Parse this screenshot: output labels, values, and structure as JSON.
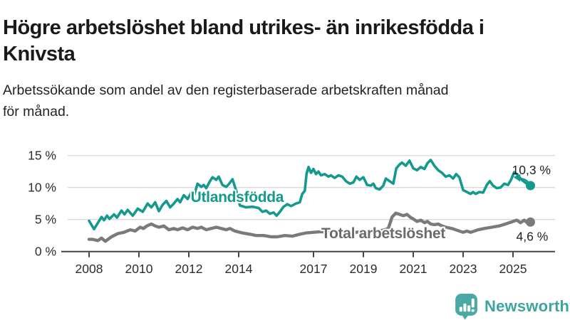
{
  "header": {
    "title_lines": [
      "Högre arbetslöshet bland utrikes- än inrikesfödda i",
      "Knivsta"
    ],
    "subtitle_lines": [
      "Arbetssökande som andel av den registerbaserade arbetskraften månad",
      "för månad."
    ]
  },
  "footer": {
    "brand": "Newsworthy",
    "logo_icon": "bar-chart-speech-bubble",
    "logo_color": "#4aa9a4"
  },
  "chart_data": {
    "type": "line",
    "title": "Högre arbetslöshet bland utrikes- än inrikesfödda i Knivsta",
    "subtitle": "Arbetssökande som andel av den registerbaserade arbetskraften månad för månad.",
    "unit": "%",
    "xlim": [
      2007.75,
      2026.35
    ],
    "ylim": [
      0,
      15.8
    ],
    "grid": true,
    "x_ticks": [
      2008,
      2010,
      2012,
      2014,
      2017,
      2019,
      2021,
      2023,
      2025
    ],
    "y_ticks": [
      {
        "value": 0,
        "label": "0 %"
      },
      {
        "value": 5,
        "label": "5 %"
      },
      {
        "value": 10,
        "label": "10 %"
      },
      {
        "value": 15,
        "label": "15 %"
      }
    ],
    "colors": {
      "grid": "#d9d9d9",
      "axis": "#444444",
      "tick_text": "#2d2d2d",
      "annotation": "#1f1f1f",
      "teal": "#14998d",
      "gray": "#7a7a7a"
    },
    "series": [
      {
        "id": "utlandsfodda",
        "name": "Utlandsfödda",
        "color": "#14998d",
        "label_color": "#14998d",
        "width": 3.6,
        "end_value": 10.3,
        "end_label": "10,3 %",
        "label_pos": [
          2013.94,
          7.74
        ],
        "end_label_offset": [
          -26,
          -16
        ],
        "arrow": true,
        "points": [
          [
            2008.0,
            4.8
          ],
          [
            2008.2,
            3.5
          ],
          [
            2008.5,
            5.4
          ],
          [
            2008.6,
            4.9
          ],
          [
            2008.72,
            5.6
          ],
          [
            2008.82,
            5.1
          ],
          [
            2009.0,
            5.8
          ],
          [
            2009.12,
            5.3
          ],
          [
            2009.3,
            6.4
          ],
          [
            2009.42,
            5.8
          ],
          [
            2009.55,
            6.5
          ],
          [
            2009.75,
            5.6
          ],
          [
            2009.95,
            6.7
          ],
          [
            2010.15,
            6.2
          ],
          [
            2010.35,
            7.5
          ],
          [
            2010.5,
            6.9
          ],
          [
            2010.65,
            7.7
          ],
          [
            2010.8,
            6.3
          ],
          [
            2010.95,
            7.3
          ],
          [
            2011.1,
            7.9
          ],
          [
            2011.25,
            6.9
          ],
          [
            2011.4,
            7.5
          ],
          [
            2011.55,
            8.2
          ],
          [
            2011.65,
            7.7
          ],
          [
            2011.8,
            8.8
          ],
          [
            2011.95,
            8.2
          ],
          [
            2012.1,
            9.2
          ],
          [
            2012.2,
            8.6
          ],
          [
            2012.35,
            10.6
          ],
          [
            2012.5,
            10.1
          ],
          [
            2012.6,
            10.4
          ],
          [
            2012.7,
            9.9
          ],
          [
            2012.85,
            11.0
          ],
          [
            2012.95,
            11.6
          ],
          [
            2013.1,
            11.2
          ],
          [
            2013.2,
            11.7
          ],
          [
            2013.35,
            10.4
          ],
          [
            2013.5,
            10.1
          ],
          [
            2013.62,
            10.6
          ],
          [
            2013.75,
            11.3
          ],
          [
            2013.9,
            9.5
          ],
          [
            2014.05,
            7.2
          ],
          [
            2014.3,
            6.9
          ],
          [
            2014.55,
            7.0
          ],
          [
            2014.8,
            6.8
          ],
          [
            2014.95,
            6.2
          ],
          [
            2015.1,
            6.4
          ],
          [
            2015.25,
            5.9
          ],
          [
            2015.4,
            6.1
          ],
          [
            2015.52,
            5.6
          ],
          [
            2015.65,
            6.2
          ],
          [
            2015.8,
            7.0
          ],
          [
            2015.95,
            7.4
          ],
          [
            2016.1,
            7.1
          ],
          [
            2016.3,
            7.5
          ],
          [
            2016.45,
            7.7
          ],
          [
            2016.55,
            9.0
          ],
          [
            2016.65,
            9.5
          ],
          [
            2016.72,
            12.1
          ],
          [
            2016.8,
            13.2
          ],
          [
            2016.9,
            12.3
          ],
          [
            2017.0,
            12.9
          ],
          [
            2017.1,
            12.1
          ],
          [
            2017.2,
            12.5
          ],
          [
            2017.3,
            11.9
          ],
          [
            2017.45,
            12.1
          ],
          [
            2017.6,
            11.7
          ],
          [
            2017.7,
            11.9
          ],
          [
            2017.85,
            11.5
          ],
          [
            2018.0,
            11.9
          ],
          [
            2018.15,
            11.7
          ],
          [
            2018.3,
            11.0
          ],
          [
            2018.45,
            10.6
          ],
          [
            2018.6,
            10.8
          ],
          [
            2018.72,
            11.7
          ],
          [
            2018.85,
            11.2
          ],
          [
            2019.0,
            11.6
          ],
          [
            2019.15,
            10.4
          ],
          [
            2019.3,
            10.3
          ],
          [
            2019.4,
            10.6
          ],
          [
            2019.5,
            9.9
          ],
          [
            2019.65,
            9.7
          ],
          [
            2019.8,
            10.3
          ],
          [
            2019.9,
            11.4
          ],
          [
            2020.05,
            11.0
          ],
          [
            2020.2,
            10.6
          ],
          [
            2020.32,
            13.0
          ],
          [
            2020.45,
            13.6
          ],
          [
            2020.55,
            13.9
          ],
          [
            2020.7,
            13.4
          ],
          [
            2020.85,
            14.2
          ],
          [
            2021.0,
            13.0
          ],
          [
            2021.15,
            12.7
          ],
          [
            2021.3,
            13.2
          ],
          [
            2021.45,
            12.9
          ],
          [
            2021.57,
            13.8
          ],
          [
            2021.7,
            14.3
          ],
          [
            2021.85,
            13.4
          ],
          [
            2022.0,
            12.7
          ],
          [
            2022.15,
            12.3
          ],
          [
            2022.3,
            11.7
          ],
          [
            2022.45,
            11.9
          ],
          [
            2022.6,
            11.4
          ],
          [
            2022.72,
            12.1
          ],
          [
            2022.85,
            11.6
          ],
          [
            2023.0,
            9.6
          ],
          [
            2023.15,
            9.3
          ],
          [
            2023.3,
            9.0
          ],
          [
            2023.4,
            9.3
          ],
          [
            2023.5,
            9.0
          ],
          [
            2023.65,
            9.3
          ],
          [
            2023.8,
            9.2
          ],
          [
            2023.95,
            10.4
          ],
          [
            2024.07,
            11.0
          ],
          [
            2024.2,
            10.3
          ],
          [
            2024.35,
            9.9
          ],
          [
            2024.5,
            10.0
          ],
          [
            2024.65,
            10.6
          ],
          [
            2024.8,
            10.4
          ],
          [
            2024.92,
            11.2
          ],
          [
            2025.05,
            12.4
          ],
          [
            2025.2,
            11.9
          ],
          [
            2025.35,
            11.2
          ],
          [
            2025.55,
            10.6
          ],
          [
            2025.7,
            10.3
          ]
        ]
      },
      {
        "id": "total-arbetsloshet",
        "name": "Total arbetslöshet",
        "color": "#7a7a7a",
        "label_color": "#6b6b6b",
        "width": 4.4,
        "end_value": 4.6,
        "end_label": "4,6 %",
        "label_pos": [
          2019.8,
          2.1
        ],
        "end_label_offset": [
          -20,
          26
        ],
        "arrow": false,
        "points": [
          [
            2008.0,
            1.9
          ],
          [
            2008.15,
            1.9
          ],
          [
            2008.35,
            1.7
          ],
          [
            2008.5,
            2.1
          ],
          [
            2008.65,
            1.6
          ],
          [
            2008.9,
            2.3
          ],
          [
            2009.15,
            2.8
          ],
          [
            2009.4,
            3.0
          ],
          [
            2009.65,
            3.4
          ],
          [
            2009.85,
            3.2
          ],
          [
            2010.05,
            3.8
          ],
          [
            2010.18,
            3.6
          ],
          [
            2010.32,
            4.0
          ],
          [
            2010.5,
            4.3
          ],
          [
            2010.65,
            4.0
          ],
          [
            2010.8,
            3.8
          ],
          [
            2011.0,
            4.0
          ],
          [
            2011.2,
            3.4
          ],
          [
            2011.4,
            3.6
          ],
          [
            2011.55,
            3.4
          ],
          [
            2011.75,
            3.7
          ],
          [
            2011.95,
            3.4
          ],
          [
            2012.15,
            3.8
          ],
          [
            2012.35,
            3.6
          ],
          [
            2012.5,
            3.8
          ],
          [
            2012.7,
            3.4
          ],
          [
            2012.9,
            3.6
          ],
          [
            2013.1,
            3.8
          ],
          [
            2013.3,
            3.6
          ],
          [
            2013.5,
            3.4
          ],
          [
            2013.65,
            3.6
          ],
          [
            2013.85,
            3.2
          ],
          [
            2014.15,
            2.9
          ],
          [
            2014.45,
            2.7
          ],
          [
            2014.7,
            2.5
          ],
          [
            2015.0,
            2.5
          ],
          [
            2015.3,
            2.3
          ],
          [
            2015.55,
            2.3
          ],
          [
            2015.85,
            2.5
          ],
          [
            2016.15,
            2.4
          ],
          [
            2016.45,
            2.7
          ],
          [
            2016.7,
            2.9
          ],
          [
            2017.0,
            3.0
          ],
          [
            2017.3,
            3.1
          ],
          [
            2017.55,
            3.0
          ],
          [
            2017.85,
            3.1
          ],
          [
            2018.15,
            3.2
          ],
          [
            2018.45,
            3.1
          ],
          [
            2018.7,
            3.0
          ],
          [
            2019.0,
            3.1
          ],
          [
            2019.3,
            3.2
          ],
          [
            2019.55,
            3.1
          ],
          [
            2019.85,
            3.4
          ],
          [
            2020.0,
            3.6
          ],
          [
            2020.15,
            5.4
          ],
          [
            2020.3,
            6.0
          ],
          [
            2020.45,
            5.8
          ],
          [
            2020.6,
            5.6
          ],
          [
            2020.75,
            5.8
          ],
          [
            2020.9,
            5.3
          ],
          [
            2021.0,
            5.1
          ],
          [
            2021.15,
            4.7
          ],
          [
            2021.3,
            4.9
          ],
          [
            2021.45,
            4.5
          ],
          [
            2021.57,
            4.7
          ],
          [
            2021.7,
            4.3
          ],
          [
            2021.85,
            4.2
          ],
          [
            2022.0,
            4.3
          ],
          [
            2022.15,
            4.0
          ],
          [
            2022.3,
            3.8
          ],
          [
            2022.55,
            3.6
          ],
          [
            2022.7,
            3.4
          ],
          [
            2022.85,
            3.2
          ],
          [
            2023.0,
            3.0
          ],
          [
            2023.15,
            3.2
          ],
          [
            2023.3,
            3.0
          ],
          [
            2023.45,
            3.2
          ],
          [
            2023.6,
            3.4
          ],
          [
            2023.85,
            3.6
          ],
          [
            2024.15,
            3.8
          ],
          [
            2024.45,
            4.0
          ],
          [
            2024.7,
            4.3
          ],
          [
            2024.85,
            4.5
          ],
          [
            2025.0,
            4.7
          ],
          [
            2025.15,
            4.9
          ],
          [
            2025.3,
            4.5
          ],
          [
            2025.45,
            4.9
          ],
          [
            2025.57,
            4.5
          ],
          [
            2025.7,
            4.6
          ]
        ]
      }
    ]
  }
}
